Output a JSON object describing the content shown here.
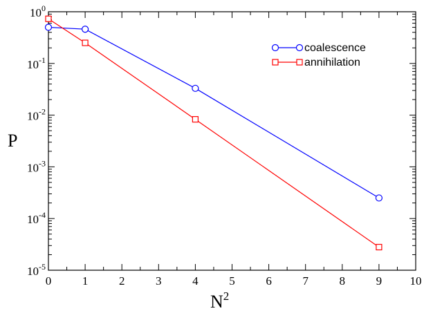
{
  "chart_data": {
    "type": "line",
    "xlabel": {
      "base": "N",
      "sup": "2"
    },
    "ylabel": "P",
    "xlim": [
      0,
      10
    ],
    "ylim": [
      1e-05,
      1
    ],
    "yscale": "log",
    "xticks": [
      "0",
      "1",
      "2",
      "3",
      "4",
      "5",
      "6",
      "7",
      "8",
      "9",
      "10"
    ],
    "yticks": [
      {
        "base": "10",
        "exp": "0",
        "value": 1
      },
      {
        "base": "10",
        "exp": "-1",
        "value": 0.1
      },
      {
        "base": "10",
        "exp": "-2",
        "value": 0.01
      },
      {
        "base": "10",
        "exp": "-3",
        "value": 0.001
      },
      {
        "base": "10",
        "exp": "-4",
        "value": 0.0001
      },
      {
        "base": "10",
        "exp": "-5",
        "value": 1e-05
      }
    ],
    "grid": false,
    "legend_position": "top-right",
    "series": [
      {
        "name": "coalescence",
        "color": "#0000ff",
        "marker": "circle",
        "x": [
          0,
          1,
          4,
          9
        ],
        "y": [
          0.5,
          0.46,
          0.033,
          0.00025
        ]
      },
      {
        "name": "annihilation",
        "color": "#ff0000",
        "marker": "square",
        "x": [
          0,
          1,
          4,
          9
        ],
        "y": [
          0.73,
          0.25,
          0.0083,
          2.8e-05
        ]
      }
    ]
  }
}
